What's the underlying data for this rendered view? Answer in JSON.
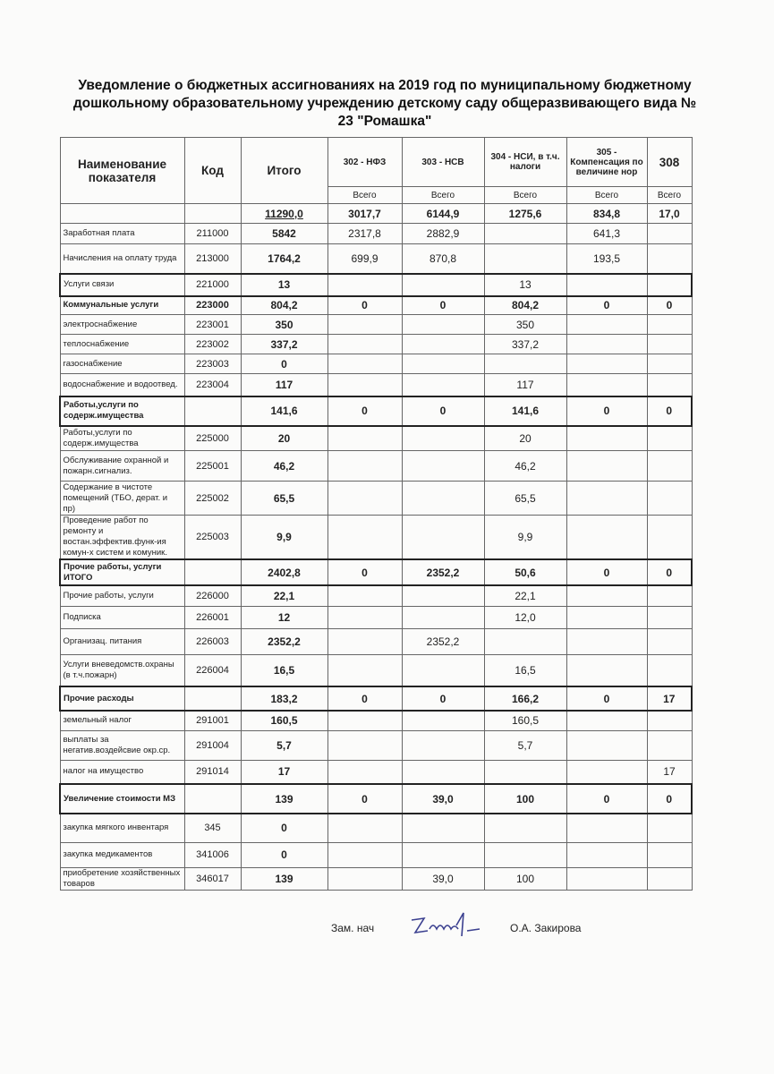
{
  "title": "Уведомление о бюджетных ассигнованиях на 2019 год по муниципальному бюджетному  дошкольному образовательному учреждению детскому саду общеразвивающего вида  № 23 \"Ромашка\"",
  "table": {
    "headers": [
      "Наименование показателя",
      "Код",
      "Итого",
      "302 - НФЗ",
      "303 - НСВ",
      "304  - НСИ, в т.ч. налоги",
      "305 - Компенсация по величине нор",
      "308"
    ],
    "subheader": "Всего",
    "rows": [
      {
        "cells": [
          "",
          "",
          "11290,0",
          "3017,7",
          "6144,9",
          "1275,6",
          "834,8",
          "17,0"
        ],
        "bold": true
      },
      {
        "cells": [
          "Заработная плата",
          "211000",
          "5842",
          "2317,8",
          "2882,9",
          "",
          "641,3",
          ""
        ]
      },
      {
        "cells": [
          "Начисления на оплату труда",
          "213000",
          "1764,2",
          "699,9",
          "870,8",
          "",
          "193,5",
          ""
        ]
      },
      {
        "cells": [
          "Услуги связи",
          "221000",
          "13",
          "",
          "",
          "13",
          "",
          ""
        ],
        "box": true
      },
      {
        "cells": [
          "Коммунальные услуги",
          "223000",
          "804,2",
          "0",
          "0",
          "804,2",
          "0",
          "0"
        ],
        "bold": true
      },
      {
        "cells": [
          "электроснабжение",
          "223001",
          "350",
          "",
          "",
          "350",
          "",
          ""
        ]
      },
      {
        "cells": [
          "теплоснабжение",
          "223002",
          "337,2",
          "",
          "",
          "337,2",
          "",
          ""
        ]
      },
      {
        "cells": [
          "газоснабжение",
          "223003",
          "0",
          "",
          "",
          "",
          "",
          ""
        ]
      },
      {
        "cells": [
          "водоснабжение и водоотвед.",
          "223004",
          "117",
          "",
          "",
          "117",
          "",
          ""
        ]
      },
      {
        "cells": [
          "Работы,услуги по содерж.имущества",
          "",
          "141,6",
          "0",
          "0",
          "141,6",
          "0",
          "0"
        ],
        "bold": true,
        "box": true
      },
      {
        "cells": [
          "Работы,услуги по содерж.имущества",
          "225000",
          "20",
          "",
          "",
          "20",
          "",
          ""
        ]
      },
      {
        "cells": [
          "Обслуживание охранной и пожарн.сигнализ.",
          "225001",
          "46,2",
          "",
          "",
          "46,2",
          "",
          ""
        ]
      },
      {
        "cells": [
          "Содержание в чистоте помещений (ТБО, дерат. и пр)",
          "225002",
          "65,5",
          "",
          "",
          "65,5",
          "",
          ""
        ]
      },
      {
        "cells": [
          "Проведение работ по ремонту и востан.эффектив.функ-ия комун-х систем и комуник.",
          "225003",
          "9,9",
          "",
          "",
          "9,9",
          "",
          ""
        ]
      },
      {
        "cells": [
          "Прочие работы, услуги ИТОГО",
          "",
          "2402,8",
          "0",
          "2352,2",
          "50,6",
          "0",
          "0"
        ],
        "bold": true,
        "box": true
      },
      {
        "cells": [
          "Прочие работы, услуги",
          "226000",
          "22,1",
          "",
          "",
          "22,1",
          "",
          ""
        ]
      },
      {
        "cells": [
          "Подписка",
          "226001",
          "12",
          "",
          "",
          "12,0",
          "",
          ""
        ]
      },
      {
        "cells": [
          "Организац. питания",
          "226003",
          "2352,2",
          "",
          "2352,2",
          "",
          "",
          ""
        ]
      },
      {
        "cells": [
          "Услуги вневедомств.охраны (в т.ч.пожарн)",
          "226004",
          "16,5",
          "",
          "",
          "16,5",
          "",
          ""
        ]
      },
      {
        "cells": [
          "Прочие расходы",
          "",
          "183,2",
          "0",
          "0",
          "166,2",
          "0",
          "17"
        ],
        "bold": true,
        "box": true
      },
      {
        "cells": [
          " земельный налог",
          "291001",
          "160,5",
          "",
          "",
          "160,5",
          "",
          ""
        ]
      },
      {
        "cells": [
          "выплаты за негатив.воздейсвие окр.ср.",
          "291004",
          "5,7",
          "",
          "",
          "5,7",
          "",
          ""
        ]
      },
      {
        "cells": [
          "налог на имущество",
          "291014",
          "17",
          "",
          "",
          "",
          "",
          "17"
        ]
      },
      {
        "cells": [
          "Увеличение стоимости МЗ",
          "",
          "139",
          "0",
          "39,0",
          "100",
          "0",
          "0"
        ],
        "bold": true,
        "box": true
      },
      {
        "cells": [
          "закупка мягкого инвентаря",
          "345",
          "0",
          "",
          "",
          "",
          "",
          ""
        ]
      },
      {
        "cells": [
          "закупка медикаментов",
          "341006",
          "0",
          "",
          "",
          "",
          "",
          ""
        ]
      },
      {
        "cells": [
          "приобретение хозяйственных товаров",
          "346017",
          "139",
          "",
          "39,0",
          "100",
          "",
          ""
        ]
      }
    ]
  },
  "footer": {
    "position": "Зам. нач",
    "name": "О.А. Закирова",
    "signature": "Закир"
  }
}
